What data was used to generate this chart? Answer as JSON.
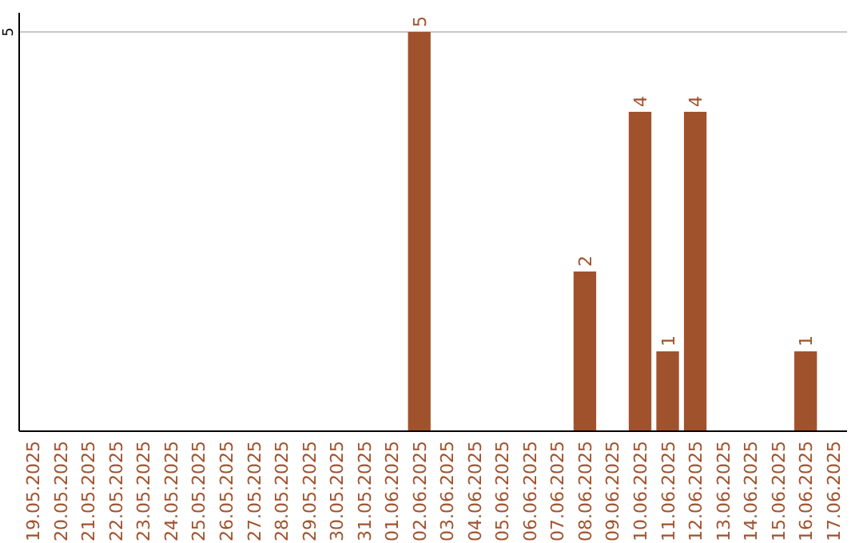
{
  "chart_data": {
    "type": "bar",
    "categories": [
      "19.05.2025",
      "20.05.2025",
      "21.05.2025",
      "22.05.2025",
      "23.05.2025",
      "24.05.2025",
      "25.05.2025",
      "26.05.2025",
      "27.05.2025",
      "28.05.2025",
      "29.05.2025",
      "30.05.2025",
      "31.05.2025",
      "01.06.2025",
      "02.06.2025",
      "03.06.2025",
      "04.06.2025",
      "05.06.2025",
      "06.06.2025",
      "07.06.2025",
      "08.06.2025",
      "09.06.2025",
      "10.06.2025",
      "11.06.2025",
      "12.06.2025",
      "13.06.2025",
      "14.06.2025",
      "15.06.2025",
      "16.06.2025",
      "17.06.2025"
    ],
    "values": [
      null,
      null,
      null,
      null,
      null,
      null,
      null,
      null,
      null,
      null,
      null,
      null,
      null,
      null,
      5,
      null,
      null,
      null,
      null,
      null,
      2,
      null,
      4,
      1,
      4,
      null,
      null,
      null,
      1,
      null
    ],
    "data_labels": true,
    "color": "#a0522d",
    "ylim": [
      0,
      5
    ],
    "yticks": [
      5
    ],
    "ref_lines": [
      {
        "axis": "y",
        "value": 5,
        "color": "#c8c8c8"
      }
    ]
  }
}
